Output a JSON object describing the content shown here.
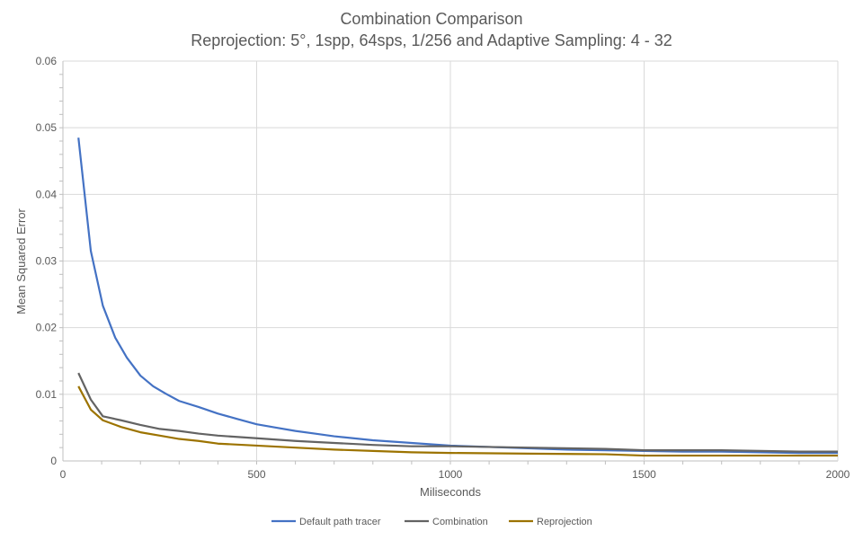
{
  "chart_data": {
    "type": "line",
    "title": "Combination Comparison",
    "subtitle": "Reprojection: 5°, 1spp, 64sps, 1/256 and Adaptive Sampling: 4 - 32",
    "xlabel": "Miliseconds",
    "ylabel": "Mean Squared Error",
    "xlim": [
      0,
      2000
    ],
    "ylim": [
      0,
      0.06
    ],
    "xticks": [
      "0",
      "500",
      "1000",
      "1500",
      "2000"
    ],
    "yticks": [
      "0",
      "0.01",
      "0.02",
      "0.03",
      "0.04",
      "0.05",
      "0.06"
    ],
    "grid": true,
    "legend_position": "bottom",
    "series": [
      {
        "name": "Default path tracer",
        "color": "#4472c4",
        "points": [
          [
            40,
            0.0485
          ],
          [
            72,
            0.0315
          ],
          [
            103,
            0.0233
          ],
          [
            135,
            0.0185
          ],
          [
            165,
            0.0155
          ],
          [
            200,
            0.0128
          ],
          [
            233,
            0.0112
          ],
          [
            265,
            0.0101
          ],
          [
            300,
            0.009
          ],
          [
            350,
            0.0081
          ],
          [
            400,
            0.0071
          ],
          [
            450,
            0.0063
          ],
          [
            500,
            0.0055
          ],
          [
            550,
            0.005
          ],
          [
            600,
            0.0045
          ],
          [
            650,
            0.0041
          ],
          [
            700,
            0.0037
          ],
          [
            800,
            0.0031
          ],
          [
            900,
            0.0027
          ],
          [
            1000,
            0.0023
          ],
          [
            1100,
            0.0021
          ],
          [
            1200,
            0.0019
          ],
          [
            1300,
            0.0017
          ],
          [
            1400,
            0.0016
          ],
          [
            1500,
            0.0015
          ],
          [
            1600,
            0.0014
          ],
          [
            1700,
            0.0014
          ],
          [
            1800,
            0.0013
          ],
          [
            1900,
            0.0012
          ],
          [
            2000,
            0.0012
          ]
        ]
      },
      {
        "name": "Combination",
        "color": "#636363",
        "points": [
          [
            40,
            0.0132
          ],
          [
            72,
            0.0092
          ],
          [
            103,
            0.0067
          ],
          [
            150,
            0.0061
          ],
          [
            200,
            0.0054
          ],
          [
            250,
            0.0048
          ],
          [
            300,
            0.0045
          ],
          [
            350,
            0.0041
          ],
          [
            400,
            0.0038
          ],
          [
            500,
            0.0034
          ],
          [
            600,
            0.003
          ],
          [
            700,
            0.0027
          ],
          [
            800,
            0.0024
          ],
          [
            900,
            0.0022
          ],
          [
            1000,
            0.0022
          ],
          [
            1200,
            0.002
          ],
          [
            1400,
            0.0018
          ],
          [
            1500,
            0.0016
          ],
          [
            1700,
            0.0016
          ],
          [
            1800,
            0.0015
          ],
          [
            1900,
            0.0014
          ],
          [
            2000,
            0.0014
          ]
        ]
      },
      {
        "name": "Reprojection",
        "color": "#9c7300",
        "points": [
          [
            40,
            0.0112
          ],
          [
            72,
            0.0077
          ],
          [
            103,
            0.0061
          ],
          [
            150,
            0.0051
          ],
          [
            200,
            0.0043
          ],
          [
            250,
            0.0038
          ],
          [
            300,
            0.0033
          ],
          [
            350,
            0.003
          ],
          [
            400,
            0.0026
          ],
          [
            500,
            0.0023
          ],
          [
            600,
            0.002
          ],
          [
            700,
            0.0017
          ],
          [
            800,
            0.0015
          ],
          [
            900,
            0.0013
          ],
          [
            1000,
            0.0012
          ],
          [
            1200,
            0.0011
          ],
          [
            1400,
            0.001
          ],
          [
            1500,
            0.0008
          ],
          [
            2000,
            0.0008
          ]
        ]
      }
    ]
  }
}
